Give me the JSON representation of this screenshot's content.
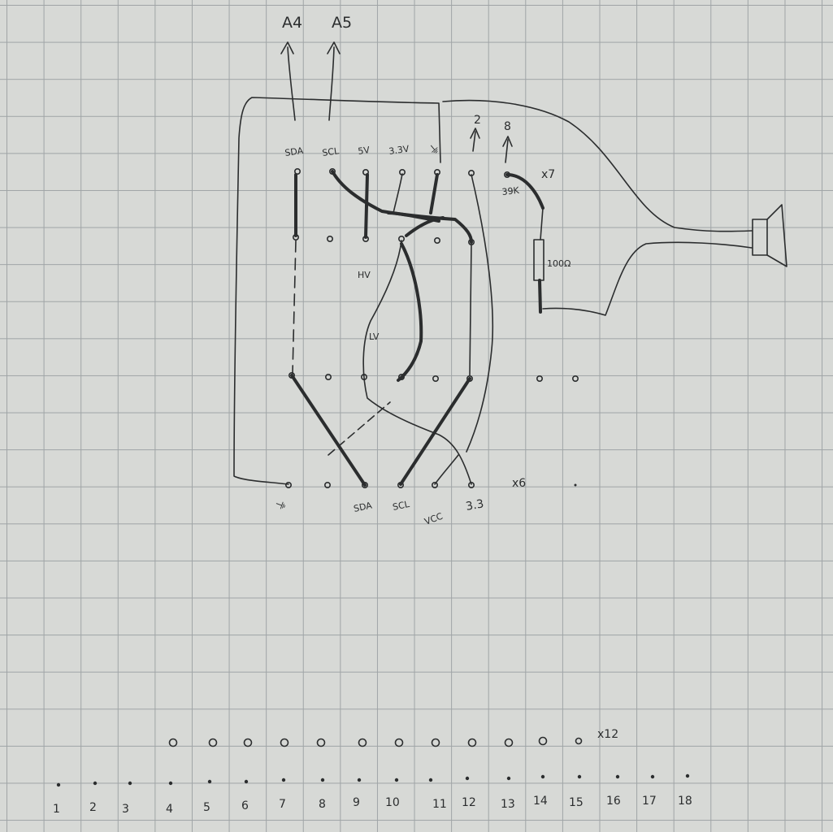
{
  "labels": {
    "top_arrow_a4": "A4",
    "top_arrow_a5": "A5",
    "header_sda": "SDA",
    "header_scl": "SCL",
    "header_5v": "5V",
    "header_3v3": "3.3V",
    "header_gnd": "⏚",
    "arrow_2": "2",
    "arrow_8": "8",
    "resistor_39k": "39K",
    "x7": "x7",
    "resistor_100": "100Ω",
    "hv": "HV",
    "lv": "LV",
    "x6": "x6",
    "bottom_gnd": "⏚",
    "bottom_sda": "SDA",
    "bottom_scl": "SCL",
    "bottom_vcc": "VCC",
    "bottom_3v3": "3.3",
    "x12": "x12"
  },
  "ruler": [
    "1",
    "2",
    "3",
    "4",
    "5",
    "6",
    "7",
    "8",
    "9",
    "10",
    "11",
    "12",
    "13",
    "14",
    "15",
    "16",
    "17",
    "18"
  ]
}
